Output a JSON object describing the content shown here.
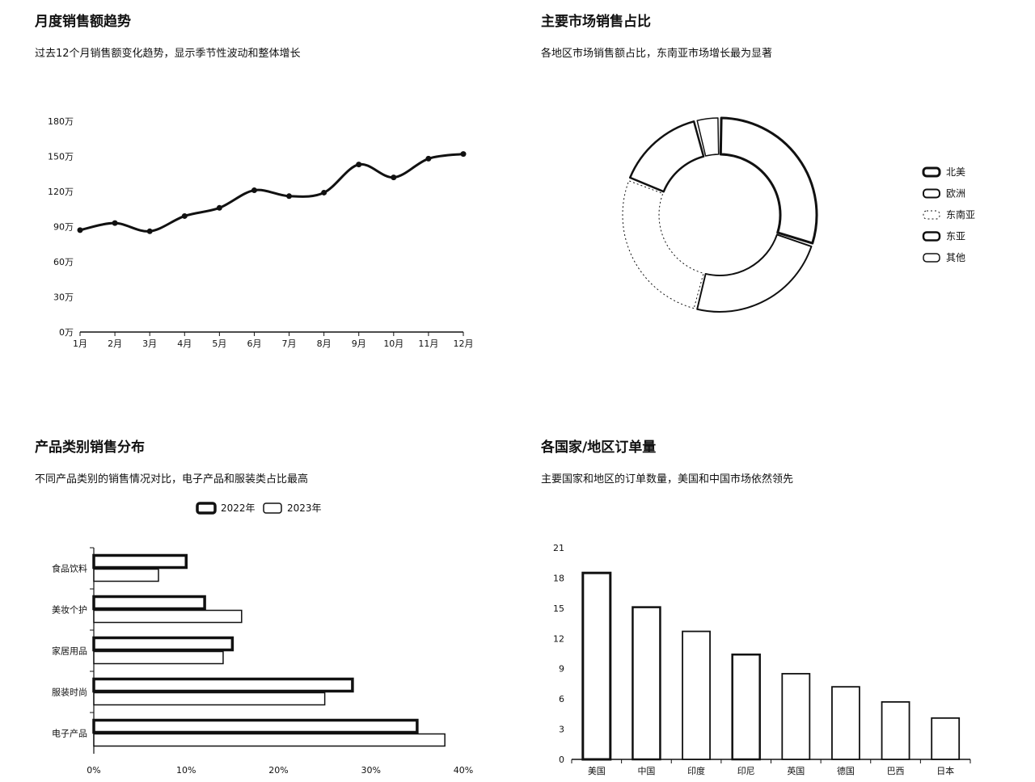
{
  "line_panel": {
    "title": "月度销售额趋势",
    "subtitle": "过去12个月销售额变化趋势，显示季节性波动和整体增长"
  },
  "donut_panel": {
    "title": "主要市场销售占比",
    "subtitle": "各地区市场销售额占比，东南亚市场增长最为显著"
  },
  "hbar_panel": {
    "title": "产品类别销售分布",
    "subtitle": "不同产品类别的销售情况对比，电子产品和服装类占比最高"
  },
  "vbar_panel": {
    "title": "各国家/地区订单量",
    "subtitle": "主要国家和地区的订单数量，美国和中国市场依然领先"
  },
  "chart_data": [
    {
      "type": "line",
      "x": [
        "1月",
        "2月",
        "3月",
        "4月",
        "5月",
        "6月",
        "7月",
        "8月",
        "9月",
        "10月",
        "11月",
        "12月"
      ],
      "y": [
        87,
        93,
        86,
        99,
        106,
        121,
        116,
        119,
        143,
        132,
        148,
        152
      ],
      "yticks": [
        "0万",
        "30万",
        "60万",
        "90万",
        "120万",
        "150万",
        "180万"
      ],
      "ylim": [
        0,
        180
      ],
      "grid": false
    },
    {
      "type": "pie",
      "donut": true,
      "labels": [
        "北美",
        "欧洲",
        "东南亚",
        "东亚",
        "其他"
      ],
      "values": [
        30,
        24,
        27,
        15,
        4
      ],
      "legend": "right"
    },
    {
      "type": "bar",
      "orientation": "horizontal",
      "categories": [
        "电子产品",
        "服装时尚",
        "家居用品",
        "美妆个护",
        "食品饮料"
      ],
      "series": [
        {
          "name": "2022年",
          "values": [
            35,
            28,
            15,
            12,
            10
          ]
        },
        {
          "name": "2023年",
          "values": [
            38,
            25,
            14,
            16,
            7
          ]
        }
      ],
      "xticks": [
        "0%",
        "10%",
        "20%",
        "30%",
        "40%"
      ],
      "xlim": [
        0,
        40
      ],
      "legend": "top"
    },
    {
      "type": "bar",
      "categories": [
        "美国",
        "中国",
        "印度",
        "印尼",
        "英国",
        "德国",
        "巴西",
        "日本"
      ],
      "values": [
        18.5,
        15.1,
        12.7,
        10.4,
        8.5,
        7.2,
        5.7,
        4.1
      ],
      "yticks": [
        "0",
        "3",
        "6",
        "9",
        "12",
        "15",
        "18",
        "21"
      ],
      "ylim": [
        0,
        21
      ]
    }
  ]
}
